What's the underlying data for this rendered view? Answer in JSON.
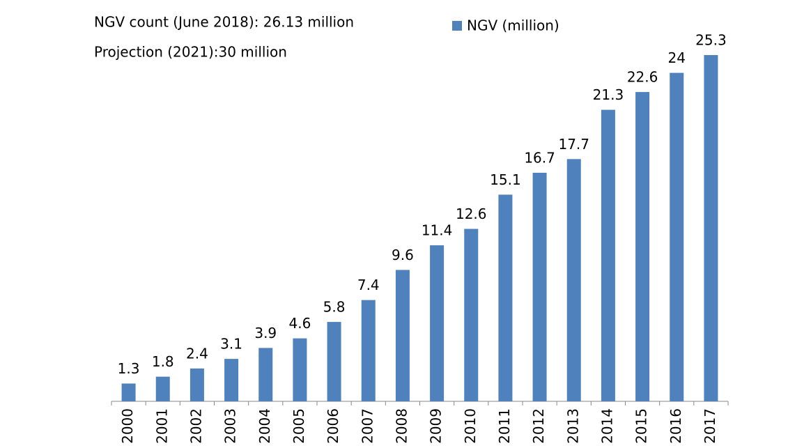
{
  "chart_data": {
    "type": "bar",
    "annotations": [
      "NGV count (June 2018): 26.13 million",
      "Projection (2021):30 million"
    ],
    "categories": [
      "2000",
      "2001",
      "2002",
      "2003",
      "2004",
      "2005",
      "2006",
      "2007",
      "2008",
      "2009",
      "2010",
      "2011",
      "2012",
      "2013",
      "2014",
      "2015",
      "2016",
      "2017"
    ],
    "series": [
      {
        "name": "NGV (million)",
        "color": "#4f81bd",
        "values": [
          1.3,
          1.8,
          2.4,
          3.1,
          3.9,
          4.6,
          5.8,
          7.4,
          9.6,
          11.4,
          12.6,
          15.1,
          16.7,
          17.7,
          21.3,
          22.6,
          24,
          25.3
        ]
      }
    ],
    "ylim": [
      0,
      28
    ]
  }
}
